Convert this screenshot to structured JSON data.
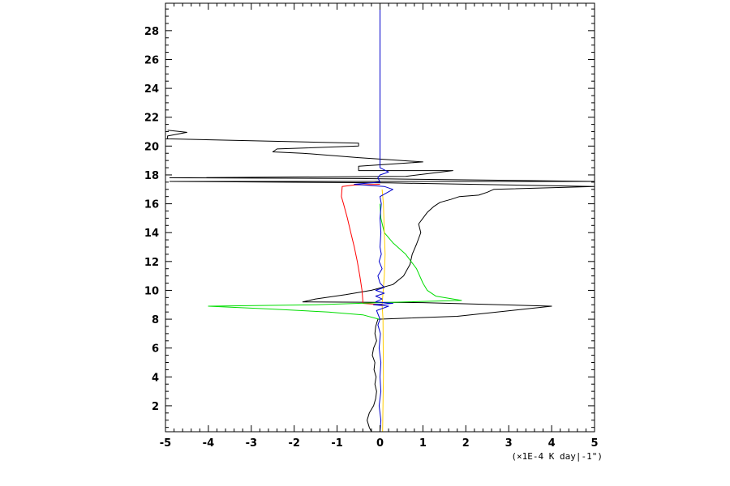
{
  "chart_data": {
    "type": "line",
    "title": "",
    "xlabel": "(×1E-4 K day|-1\")",
    "ylabel": "",
    "xlim": [
      -5,
      5
    ],
    "ylim": [
      0.2,
      29.9
    ],
    "x_ticks": [
      -5,
      -4,
      -3,
      -2,
      -1,
      0,
      1,
      2,
      3,
      4,
      5
    ],
    "y_ticks": [
      2,
      4,
      6,
      8,
      10,
      12,
      14,
      16,
      18,
      20,
      22,
      24,
      26,
      28
    ],
    "x_tick_labels": [
      "-5",
      "-4",
      "-3",
      "-2",
      "-1",
      "0",
      "1",
      "2",
      "3",
      "4",
      "5"
    ],
    "y_tick_labels": [
      "2",
      "4",
      "6",
      "8",
      "10",
      "12",
      "14",
      "16",
      "18",
      "20",
      "22",
      "24",
      "26",
      "28"
    ],
    "grid": false,
    "series": [
      {
        "color": "#000000",
        "points": [
          [
            -0.2,
            0.2
          ],
          [
            -0.25,
            0.5
          ],
          [
            -0.3,
            1.0
          ],
          [
            -0.25,
            1.5
          ],
          [
            -0.15,
            2.0
          ],
          [
            -0.1,
            2.5
          ],
          [
            -0.08,
            3.0
          ],
          [
            -0.12,
            3.5
          ],
          [
            -0.09,
            4.0
          ],
          [
            -0.14,
            4.5
          ],
          [
            -0.12,
            5.0
          ],
          [
            -0.18,
            5.5
          ],
          [
            -0.15,
            6.0
          ],
          [
            -0.08,
            6.5
          ],
          [
            -0.12,
            7.0
          ],
          [
            -0.1,
            7.5
          ],
          [
            -0.05,
            8.0
          ],
          [
            1.8,
            8.2
          ],
          [
            4.0,
            8.9
          ],
          [
            1.0,
            9.15
          ],
          [
            -1.8,
            9.2
          ],
          [
            -1.5,
            9.4
          ],
          [
            -0.8,
            9.7
          ],
          [
            -0.2,
            10.0
          ],
          [
            0.3,
            10.4
          ],
          [
            0.55,
            11.0
          ],
          [
            0.7,
            11.8
          ],
          [
            0.75,
            12.5
          ],
          [
            0.85,
            13.2
          ],
          [
            0.95,
            14.0
          ],
          [
            0.9,
            14.6
          ],
          [
            1.0,
            15.0
          ],
          [
            1.1,
            15.4
          ],
          [
            1.25,
            15.8
          ],
          [
            1.4,
            16.1
          ],
          [
            1.65,
            16.3
          ],
          [
            1.85,
            16.5
          ],
          [
            2.3,
            16.6
          ],
          [
            2.5,
            16.8
          ],
          [
            2.65,
            17.0
          ],
          [
            5.0,
            17.2
          ],
          [
            0.2,
            17.45
          ],
          [
            -4.9,
            17.55
          ],
          [
            5.0,
            17.55
          ],
          [
            -0.5,
            17.75
          ],
          [
            -4.9,
            17.8
          ],
          [
            0.6,
            17.9
          ],
          [
            1.7,
            18.3
          ],
          [
            -0.5,
            18.3
          ],
          [
            -0.5,
            18.6
          ],
          [
            1.0,
            18.9
          ],
          [
            -0.5,
            19.2
          ],
          [
            -1.8,
            19.5
          ],
          [
            -2.5,
            19.6
          ],
          [
            -2.4,
            19.8
          ],
          [
            -0.5,
            20.0
          ],
          [
            -0.5,
            20.2
          ],
          [
            -4.95,
            20.5
          ],
          [
            -4.95,
            20.7
          ],
          [
            -4.5,
            20.95
          ],
          [
            -4.95,
            21.1
          ]
        ]
      },
      {
        "color": "#ff0000",
        "points": [
          [
            0.05,
            9.0
          ],
          [
            -0.4,
            9.1
          ],
          [
            -0.4,
            9.3
          ],
          [
            -0.42,
            10.0
          ],
          [
            -0.47,
            11.0
          ],
          [
            -0.53,
            12.0
          ],
          [
            -0.6,
            13.0
          ],
          [
            -0.68,
            14.0
          ],
          [
            -0.76,
            15.0
          ],
          [
            -0.85,
            16.0
          ],
          [
            -0.9,
            16.5
          ],
          [
            -0.88,
            17.2
          ],
          [
            -0.6,
            17.3
          ],
          [
            0.0,
            17.35
          ]
        ]
      },
      {
        "color": "#00dd00",
        "points": [
          [
            -0.02,
            8.0
          ],
          [
            -0.4,
            8.3
          ],
          [
            -1.2,
            8.5
          ],
          [
            -2.5,
            8.7
          ],
          [
            -4.0,
            8.9
          ],
          [
            -1.5,
            9.0
          ],
          [
            0.0,
            9.15
          ],
          [
            1.9,
            9.3
          ],
          [
            1.3,
            9.6
          ],
          [
            1.1,
            10.0
          ],
          [
            1.0,
            10.5
          ],
          [
            0.85,
            11.5
          ],
          [
            0.6,
            12.5
          ],
          [
            0.3,
            13.3
          ],
          [
            0.1,
            14.0
          ],
          [
            0.02,
            15.0
          ],
          [
            0.0,
            16.0
          ]
        ]
      },
      {
        "color": "#ffcc00",
        "points": [
          [
            0.06,
            0.2
          ],
          [
            0.08,
            4.0
          ],
          [
            0.07,
            8.0
          ],
          [
            0.05,
            9.0
          ],
          [
            0.1,
            11.0
          ],
          [
            0.12,
            12.5
          ],
          [
            0.1,
            14.0
          ],
          [
            0.08,
            16.0
          ],
          [
            0.05,
            17.0
          ]
        ]
      },
      {
        "color": "#0000cc",
        "points": [
          [
            0.0,
            0.2
          ],
          [
            0.02,
            1.0
          ],
          [
            -0.02,
            2.0
          ],
          [
            0.02,
            3.0
          ],
          [
            0.0,
            4.0
          ],
          [
            0.02,
            5.0
          ],
          [
            -0.02,
            6.0
          ],
          [
            0.01,
            7.0
          ],
          [
            -0.05,
            7.6
          ],
          [
            0.0,
            8.0
          ],
          [
            -0.08,
            8.6
          ],
          [
            0.2,
            8.9
          ],
          [
            -0.15,
            9.0
          ],
          [
            0.3,
            9.1
          ],
          [
            -0.1,
            9.2
          ],
          [
            0.05,
            9.4
          ],
          [
            -0.1,
            9.6
          ],
          [
            0.1,
            9.8
          ],
          [
            -0.1,
            10.0
          ],
          [
            0.1,
            10.2
          ],
          [
            0.0,
            10.5
          ],
          [
            -0.05,
            11.0
          ],
          [
            0.05,
            11.5
          ],
          [
            -0.02,
            12.0
          ],
          [
            0.03,
            12.5
          ],
          [
            0.0,
            13.0
          ],
          [
            0.02,
            14.0
          ],
          [
            0.0,
            15.0
          ],
          [
            0.03,
            16.0
          ],
          [
            0.0,
            16.5
          ],
          [
            0.3,
            17.0
          ],
          [
            0.1,
            17.2
          ],
          [
            -0.6,
            17.35
          ],
          [
            0.0,
            17.5
          ],
          [
            -0.05,
            17.8
          ],
          [
            0.0,
            18.0
          ],
          [
            0.2,
            18.2
          ],
          [
            0.0,
            18.5
          ],
          [
            0.0,
            29.9
          ]
        ]
      }
    ]
  }
}
